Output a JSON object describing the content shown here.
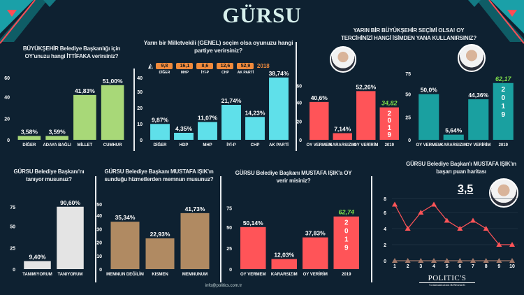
{
  "header": {
    "title": "GÜRSU"
  },
  "footer": {
    "email": "info@politics.com.tr",
    "logo_main": "POLITIC'S",
    "logo_sub": "Communication & Research"
  },
  "colors": {
    "background": "#0e2131",
    "green": "#a8d878",
    "cyan": "#5fe0ea",
    "red": "#ff5458",
    "teal": "#1aa0a0",
    "gray": "#e4e4e4",
    "brown": "#b08a62",
    "orange": "#f08a3c",
    "highlight": "#7ddc4a"
  },
  "ref2018": {
    "year": "2018",
    "icon": "party-logo-icon",
    "items": [
      {
        "label": "DİĞER",
        "value": "9,8"
      },
      {
        "label": "MHP",
        "value": "16,1"
      },
      {
        "label": "İYİ-P",
        "value": "8,6"
      },
      {
        "label": "CHP",
        "value": "12,6"
      },
      {
        "label": "AK PARTİ",
        "value": "52,9"
      }
    ]
  },
  "score": {
    "value": "3,5"
  },
  "chart_data": [
    {
      "id": "c1",
      "type": "bar",
      "title": "BÜYÜKŞEHİR Belediye Başkanlığı için OY'unuzu hangi İTTİFAKA verirsiniz?",
      "categories": [
        "DİĞER",
        "ADAYA BAĞLI",
        "MİLLET",
        "CUMHUR"
      ],
      "values": [
        3.58,
        3.59,
        41.83,
        51.0
      ],
      "value_labels": [
        "3,58%",
        "3,59%",
        "41,83%",
        "51,00%"
      ],
      "yticks": [
        0,
        20,
        40,
        60
      ],
      "ylim": [
        0,
        60
      ],
      "color": "#a8d878"
    },
    {
      "id": "c2",
      "type": "bar",
      "title": "Yarın bir Milletvekili  (GENEL) seçim olsa oyunuzu hangi partiye verirsiniz?",
      "categories": [
        "DİĞER",
        "HDP",
        "MHP",
        "İYİ-P",
        "CHP",
        "AK PARTİ"
      ],
      "values": [
        9.87,
        4.35,
        11.07,
        21.74,
        14.23,
        38.74
      ],
      "value_labels": [
        "9,87%",
        "4,35%",
        "11,07%",
        "21,74%",
        "14,23%",
        "38,74%"
      ],
      "yticks": [
        0,
        10,
        20,
        30,
        40
      ],
      "ylim": [
        0,
        40
      ],
      "color": "#5fe0ea"
    },
    {
      "id": "c3a",
      "type": "bar",
      "title": "YARIN BİR BÜYÜKŞEHİR SEÇİMİ OLSA! OY TERCİHİNİZİ HANGİ İSİMDEN YANA KULLANIRSINIZ?",
      "categories": [
        "OY VERMEM",
        "KARARSIZIM",
        "OY VERİRİM",
        "2019"
      ],
      "values": [
        40.6,
        7.14,
        52.26,
        34.82
      ],
      "value_labels": [
        "40,6%",
        "7,14%",
        "52,26%",
        "34,82"
      ],
      "highlight": [
        false,
        false,
        false,
        true
      ],
      "bar_text": [
        "",
        "",
        "",
        "2019"
      ],
      "yticks": [
        0,
        20,
        40,
        60
      ],
      "ylim": [
        0,
        60
      ],
      "color": "#ff5458"
    },
    {
      "id": "c3b",
      "type": "bar",
      "categories": [
        "OY VERMEM",
        "KARARSIZIM",
        "OY VERİRİM",
        "2019"
      ],
      "values": [
        50.0,
        5.64,
        44.36,
        62.17
      ],
      "value_labels": [
        "50,0%",
        "5,64%",
        "44,36%",
        "62,17"
      ],
      "highlight": [
        false,
        false,
        false,
        true
      ],
      "bar_text": [
        "",
        "",
        "",
        "2019"
      ],
      "yticks": [
        0,
        25,
        50,
        75
      ],
      "ylim": [
        0,
        75
      ],
      "color": "#1aa0a0"
    },
    {
      "id": "c4",
      "type": "bar",
      "title": "GÜRSU Belediye Başkanı'nı tanıyor musunuz?",
      "categories": [
        "TANIMIYORUM",
        "TANIYORUM"
      ],
      "values": [
        9.4,
        90.6
      ],
      "value_labels": [
        "9,40%",
        "90,60%"
      ],
      "yticks": [
        0,
        25,
        50,
        75
      ],
      "ylim": [
        0,
        75
      ],
      "color": "#e4e4e4"
    },
    {
      "id": "c5",
      "type": "bar",
      "title": "GÜRSU Belediye Başkanı MUSTAFA IŞIK'ın sunduğu hizmetlerden memnun musunuz?",
      "categories": [
        "MEMNUN DEĞİLİM",
        "KISMEN",
        "MEMNUNUM"
      ],
      "values": [
        35.34,
        22.93,
        41.73
      ],
      "value_labels": [
        "35,34%",
        "22,93%",
        "41,73%"
      ],
      "yticks": [
        0,
        10,
        20,
        30,
        40,
        50
      ],
      "ylim": [
        0,
        50
      ],
      "color": "#b08a62"
    },
    {
      "id": "c6",
      "type": "bar",
      "title": "GÜRSU Belediye Başkanı MUSTAFA IŞIK'a OY verir misiniz?",
      "categories": [
        "OY VERMEM",
        "KARARSIZIM",
        "OY VERİRİM",
        "2019"
      ],
      "values": [
        50.14,
        12.03,
        37.83,
        62.74
      ],
      "value_labels": [
        "50,14%",
        "12,03%",
        "37,83%",
        "62,74"
      ],
      "highlight": [
        false,
        false,
        false,
        true
      ],
      "bar_text": [
        "",
        "",
        "",
        "2019"
      ],
      "yticks": [
        0,
        25,
        50,
        75
      ],
      "ylim": [
        0,
        75
      ],
      "color": "#ff5458"
    },
    {
      "id": "c7",
      "type": "line",
      "title": "GÜRSU Belediye Başkan'ı MUSTAFA IŞIK'ın başarı puan haritası",
      "x": [
        1,
        2,
        3,
        4,
        5,
        6,
        7,
        8,
        9,
        10
      ],
      "series": [
        {
          "values": [
            7,
            4,
            6,
            7,
            5,
            4,
            5,
            4,
            2,
            2
          ],
          "color": "#ff5458"
        },
        {
          "values": [
            0,
            0,
            0,
            0,
            0,
            0,
            0,
            0,
            0,
            0
          ],
          "color": "#a0786a"
        }
      ],
      "yticks": [
        0,
        2,
        4,
        6,
        8
      ],
      "ylim": [
        0,
        8
      ],
      "grid": true
    }
  ]
}
